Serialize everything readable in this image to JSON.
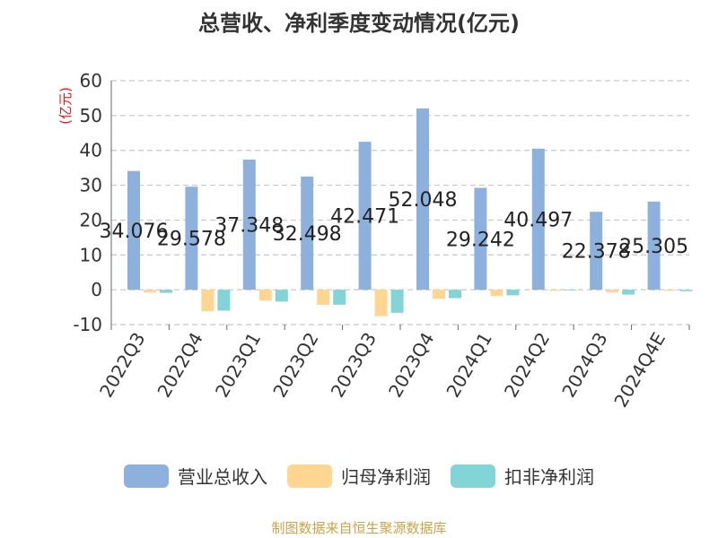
{
  "title": "总营收、净利季度变动情况(亿元)",
  "source_note": "制图数据来自恒生聚源数据库",
  "colors": {
    "revenue": "#8eb0dc",
    "net_profit": "#fed591",
    "deducted_net_profit": "#82d4d7",
    "grid": "#c8c8c8",
    "axis_text": "#333333",
    "unit_text": "#e8141c"
  },
  "chart_data": {
    "type": "bar",
    "ylabel": "(亿元)",
    "ylim": [
      -10,
      60
    ],
    "yticks": [
      -10,
      0,
      10,
      20,
      30,
      40,
      50,
      60
    ],
    "grid": true,
    "legend_position": "bottom",
    "categories": [
      "2022Q3",
      "2022Q4",
      "2023Q1",
      "2023Q2",
      "2023Q3",
      "2023Q4",
      "2024Q1",
      "2024Q2",
      "2024Q3",
      "2024Q4E"
    ],
    "series": [
      {
        "name": "营业总收入",
        "values": [
          34.076,
          29.578,
          37.348,
          32.498,
          42.471,
          52.048,
          29.242,
          40.497,
          22.378,
          25.305
        ],
        "show_labels": true
      },
      {
        "name": "归母净利润",
        "values": [
          -0.8,
          -6.2,
          -3.1,
          -4.3,
          -7.6,
          -2.6,
          -1.8,
          -0.3,
          -0.8,
          -0.3
        ],
        "show_labels": false
      },
      {
        "name": "扣非净利润",
        "values": [
          -0.9,
          -6.0,
          -3.4,
          -4.3,
          -6.6,
          -2.4,
          -1.6,
          -0.2,
          -1.4,
          -0.4
        ],
        "show_labels": false
      }
    ]
  }
}
